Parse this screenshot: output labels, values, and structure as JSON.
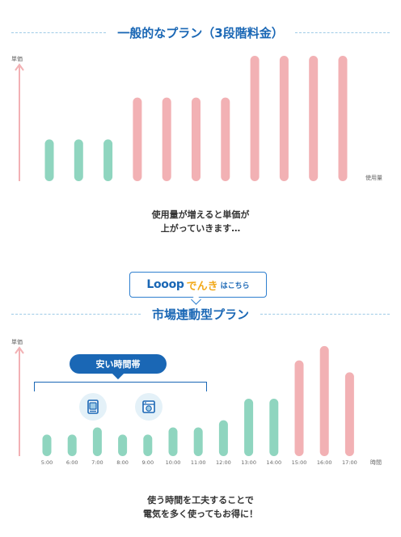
{
  "section1": {
    "title": "一般的なプラン（3段階料金）",
    "caption_line1": "使用量が増えると単価が",
    "caption_line2": "上がっていきます…"
  },
  "banner": {
    "logo": "Looop",
    "logo_accent": "でんき",
    "suffix": "はこちら"
  },
  "section2": {
    "title": "市場連動型プラン",
    "cheap_label": "安い時間帯",
    "caption_line1": "使う時間を工夫することで",
    "caption_line2": "電気を多く使ってもお得に！"
  },
  "colors": {
    "low": "#8fd5bf",
    "high": "#f2b1b4",
    "accent": "#1a67b5",
    "axis": "#f2b1b4"
  },
  "icons": [
    "washing-machine-icon",
    "dishwasher-icon"
  ],
  "chart_data": [
    {
      "type": "bar",
      "ylabel": "単価",
      "xlabel": "使用量",
      "values": [
        1,
        1,
        1,
        2,
        2,
        2,
        2,
        3,
        3,
        3,
        3
      ],
      "tiers": [
        "low",
        "low",
        "low",
        "high",
        "high",
        "high",
        "high",
        "high",
        "high",
        "high",
        "high"
      ],
      "ylim": [
        0,
        3
      ]
    },
    {
      "type": "bar",
      "ylabel": "単価",
      "xlabel": "時間",
      "categories": [
        "5:00",
        "6:00",
        "7:00",
        "8:00",
        "9:00",
        "10:00",
        "11:00",
        "12:00",
        "13:00",
        "14:00",
        "15:00",
        "16:00",
        "17:00"
      ],
      "values": [
        1.8,
        1.8,
        2.4,
        1.8,
        1.8,
        2.4,
        2.4,
        3.0,
        4.8,
        4.8,
        8.0,
        9.2,
        7.0
      ],
      "tiers": [
        "low",
        "low",
        "low",
        "low",
        "low",
        "low",
        "low",
        "low",
        "low",
        "low",
        "high",
        "high",
        "high"
      ],
      "ylim": [
        0,
        10
      ]
    }
  ]
}
